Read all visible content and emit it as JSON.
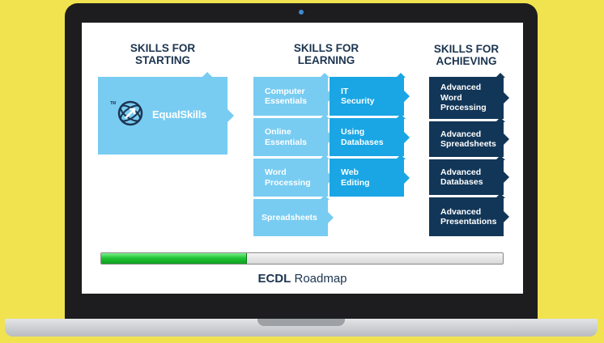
{
  "columns": {
    "starting": {
      "heading": "SKILLS FOR\nSTARTING",
      "logo_tm": "TM",
      "logo_text": "EqualSkills"
    },
    "learning": {
      "heading": "SKILLS FOR\nLEARNING",
      "left_tiles": [
        "Computer\nEssentials",
        "Online\nEssentials",
        "Word\nProcessing",
        "Spreadsheets"
      ],
      "right_tiles": [
        "IT\nSecurity",
        "Using\nDatabases",
        "Web\nEditing"
      ]
    },
    "achieving": {
      "heading": "SKILLS FOR\nACHIEVING",
      "tiles": [
        "Advanced\nWord\nProcessing",
        "Advanced\nSpreadsheets",
        "Advanced\nDatabases",
        "Advanced\nPresentations"
      ]
    }
  },
  "progress": {
    "fraction": 0.36
  },
  "caption": {
    "bold": "ECDL",
    "rest": " Roadmap"
  },
  "colors": {
    "background": "#f1e350",
    "heading": "#1c3450",
    "light_tile": "#78ccf2",
    "mid_tile": "#1aa6e4",
    "dark_tile": "#123657",
    "progress_green": "#22c436"
  },
  "icons": {
    "logo": "globe-arrow-icon",
    "camera": "camera-icon"
  }
}
